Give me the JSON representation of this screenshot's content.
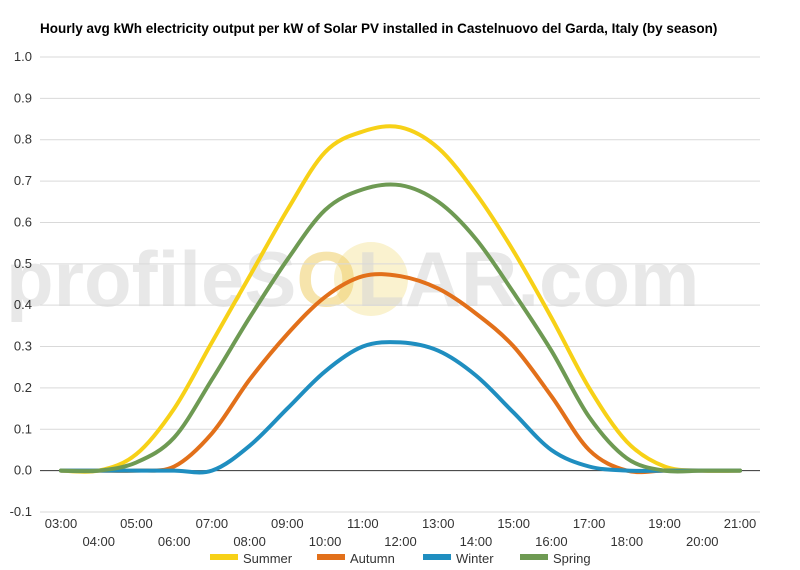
{
  "watermark": {
    "prefix": "profileS",
    "middle": "O",
    "suffix": "LAR.com"
  },
  "chart_data": {
    "type": "line",
    "title": "Hourly avg kWh electricity output per kW of Solar PV installed in Castelnuovo del Garda, Italy (by season)",
    "xlabel": "",
    "ylabel": "",
    "ylim": [
      -0.1,
      1.0
    ],
    "yticks": [
      "-0.1",
      "0.0",
      "0.1",
      "0.2",
      "0.3",
      "0.4",
      "0.5",
      "0.6",
      "0.7",
      "0.8",
      "0.9",
      "1.0"
    ],
    "grid": true,
    "legend_position": "bottom",
    "x": [
      "03:00",
      "04:00",
      "05:00",
      "06:00",
      "07:00",
      "08:00",
      "09:00",
      "10:00",
      "11:00",
      "12:00",
      "13:00",
      "14:00",
      "15:00",
      "16:00",
      "17:00",
      "18:00",
      "19:00",
      "20:00",
      "21:00"
    ],
    "series": [
      {
        "name": "Summer",
        "color": "#f7d117",
        "values": [
          0.0,
          0.0,
          0.04,
          0.15,
          0.31,
          0.47,
          0.63,
          0.77,
          0.82,
          0.83,
          0.78,
          0.67,
          0.53,
          0.37,
          0.2,
          0.07,
          0.01,
          0.0,
          0.0
        ]
      },
      {
        "name": "Autumn",
        "color": "#e2701a",
        "values": [
          0.0,
          0.0,
          0.0,
          0.01,
          0.09,
          0.22,
          0.33,
          0.42,
          0.47,
          0.47,
          0.44,
          0.38,
          0.3,
          0.18,
          0.05,
          0.0,
          0.0,
          0.0,
          0.0
        ]
      },
      {
        "name": "Winter",
        "color": "#1f8ec0",
        "values": [
          0.0,
          0.0,
          0.0,
          0.0,
          0.0,
          0.06,
          0.15,
          0.24,
          0.3,
          0.31,
          0.29,
          0.23,
          0.14,
          0.05,
          0.01,
          0.0,
          0.0,
          0.0,
          0.0
        ]
      },
      {
        "name": "Spring",
        "color": "#6e9a53",
        "values": [
          0.0,
          0.0,
          0.02,
          0.08,
          0.22,
          0.37,
          0.51,
          0.63,
          0.68,
          0.69,
          0.65,
          0.56,
          0.43,
          0.29,
          0.13,
          0.03,
          0.0,
          0.0,
          0.0
        ]
      }
    ]
  }
}
